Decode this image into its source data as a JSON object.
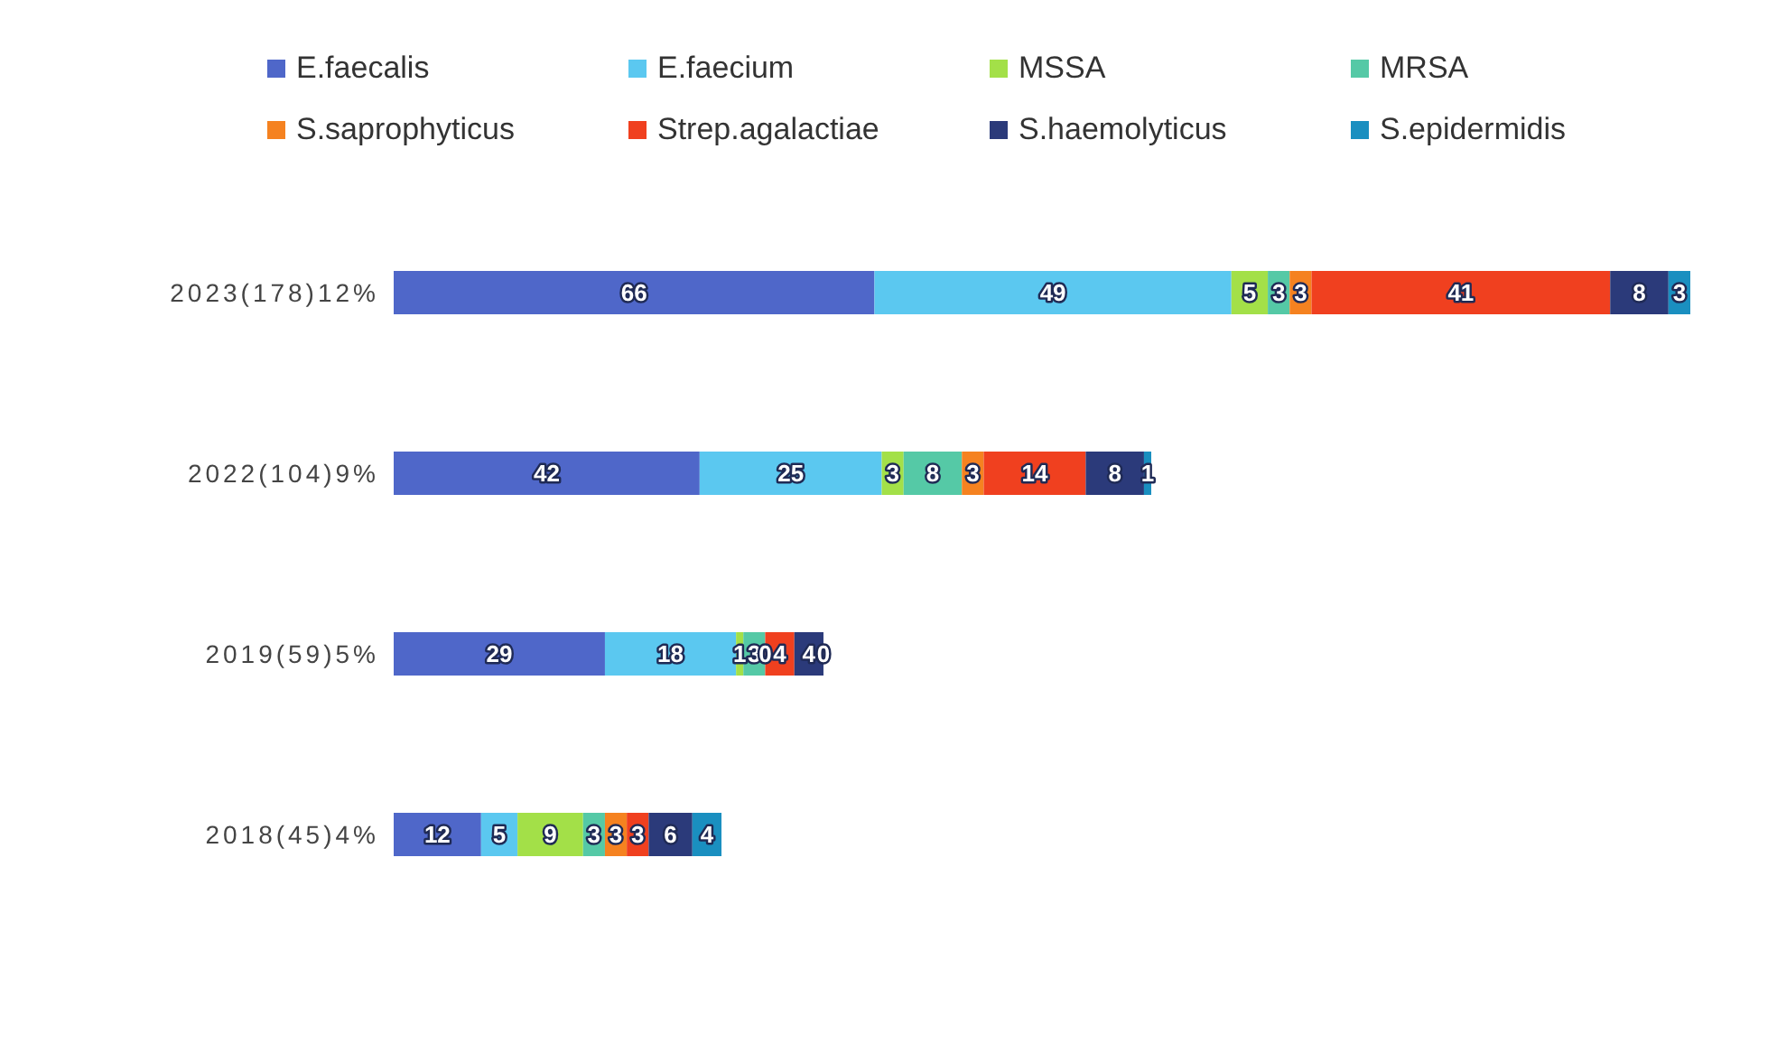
{
  "chart_data": {
    "type": "bar",
    "orientation": "horizontal",
    "stacked": true,
    "data_labels": true,
    "legend": "top",
    "categories": [
      "2023(178)12%",
      "2022(104)9%",
      "2019(59)5%",
      "2018(45)4%"
    ],
    "series": [
      {
        "name": "E.faecalis",
        "color": "#4f67c9",
        "values": [
          66,
          42,
          29,
          12
        ]
      },
      {
        "name": "E.faecium",
        "color": "#5bc8f0",
        "values": [
          49,
          25,
          18,
          5
        ]
      },
      {
        "name": "MSSA",
        "color": "#a3e048",
        "values": [
          5,
          3,
          1,
          9
        ]
      },
      {
        "name": "MRSA",
        "color": "#55c9a6",
        "values": [
          3,
          8,
          3,
          3
        ]
      },
      {
        "name": "S.saprophyticus",
        "color": "#f58220",
        "values": [
          3,
          3,
          0,
          3
        ]
      },
      {
        "name": "Strep.agalactiae",
        "color": "#f0401f",
        "values": [
          41,
          14,
          4,
          3
        ]
      },
      {
        "name": "S.haemolyticus",
        "color": "#2b3a7a",
        "values": [
          8,
          8,
          4,
          6
        ]
      },
      {
        "name": "S.epidermidis",
        "color": "#1a8fc0",
        "values": [
          3,
          1,
          0,
          4
        ]
      }
    ]
  }
}
